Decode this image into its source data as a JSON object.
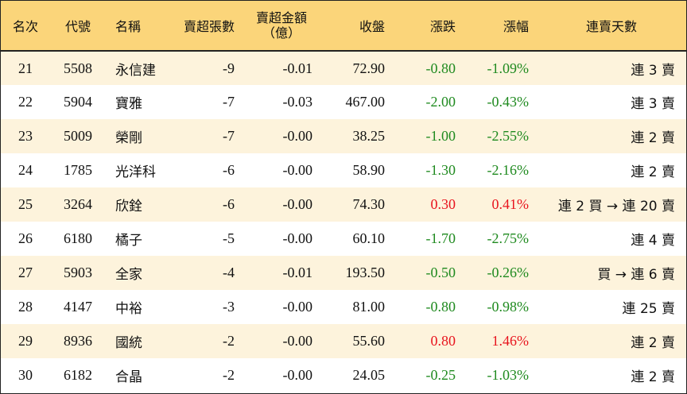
{
  "headers": {
    "rank": "名次",
    "code": "代號",
    "name": "名稱",
    "net_sell_lots": "賣超張數",
    "net_sell_amount_line1": "賣超金額",
    "net_sell_amount_line2": "（億）",
    "close": "收盤",
    "change": "漲跌",
    "change_pct": "漲幅",
    "streak": "連賣天數"
  },
  "colors": {
    "header_bg": "#fbd57a",
    "row_alt_bg": "#fdf3dc",
    "up": "#e8141e",
    "down": "#1f8a1f"
  },
  "rows": [
    {
      "rank": "21",
      "code": "5508",
      "name": "永信建",
      "lots": "-9",
      "amount": "-0.01",
      "close": "72.90",
      "change": "-0.80",
      "pct": "-1.09%",
      "dir": "down",
      "streak": "連 3 賣"
    },
    {
      "rank": "22",
      "code": "5904",
      "name": "寶雅",
      "lots": "-7",
      "amount": "-0.03",
      "close": "467.00",
      "change": "-2.00",
      "pct": "-0.43%",
      "dir": "down",
      "streak": "連 3 賣"
    },
    {
      "rank": "23",
      "code": "5009",
      "name": "榮剛",
      "lots": "-7",
      "amount": "-0.00",
      "close": "38.25",
      "change": "-1.00",
      "pct": "-2.55%",
      "dir": "down",
      "streak": "連 2 賣"
    },
    {
      "rank": "24",
      "code": "1785",
      "name": "光洋科",
      "lots": "-6",
      "amount": "-0.00",
      "close": "58.90",
      "change": "-1.30",
      "pct": "-2.16%",
      "dir": "down",
      "streak": "連 2 賣"
    },
    {
      "rank": "25",
      "code": "3264",
      "name": "欣銓",
      "lots": "-6",
      "amount": "-0.00",
      "close": "74.30",
      "change": "0.30",
      "pct": "0.41%",
      "dir": "up",
      "streak": "連 2 買 → 連 20 賣"
    },
    {
      "rank": "26",
      "code": "6180",
      "name": "橘子",
      "lots": "-5",
      "amount": "-0.00",
      "close": "60.10",
      "change": "-1.70",
      "pct": "-2.75%",
      "dir": "down",
      "streak": "連 4 賣"
    },
    {
      "rank": "27",
      "code": "5903",
      "name": "全家",
      "lots": "-4",
      "amount": "-0.01",
      "close": "193.50",
      "change": "-0.50",
      "pct": "-0.26%",
      "dir": "down",
      "streak": "買 → 連 6 賣"
    },
    {
      "rank": "28",
      "code": "4147",
      "name": "中裕",
      "lots": "-3",
      "amount": "-0.00",
      "close": "81.00",
      "change": "-0.80",
      "pct": "-0.98%",
      "dir": "down",
      "streak": "連 25 賣"
    },
    {
      "rank": "29",
      "code": "8936",
      "name": "國統",
      "lots": "-2",
      "amount": "-0.00",
      "close": "55.60",
      "change": "0.80",
      "pct": "1.46%",
      "dir": "up",
      "streak": "連 2 賣"
    },
    {
      "rank": "30",
      "code": "6182",
      "name": "合晶",
      "lots": "-2",
      "amount": "-0.00",
      "close": "24.05",
      "change": "-0.25",
      "pct": "-1.03%",
      "dir": "down",
      "streak": "連 2 賣"
    }
  ]
}
